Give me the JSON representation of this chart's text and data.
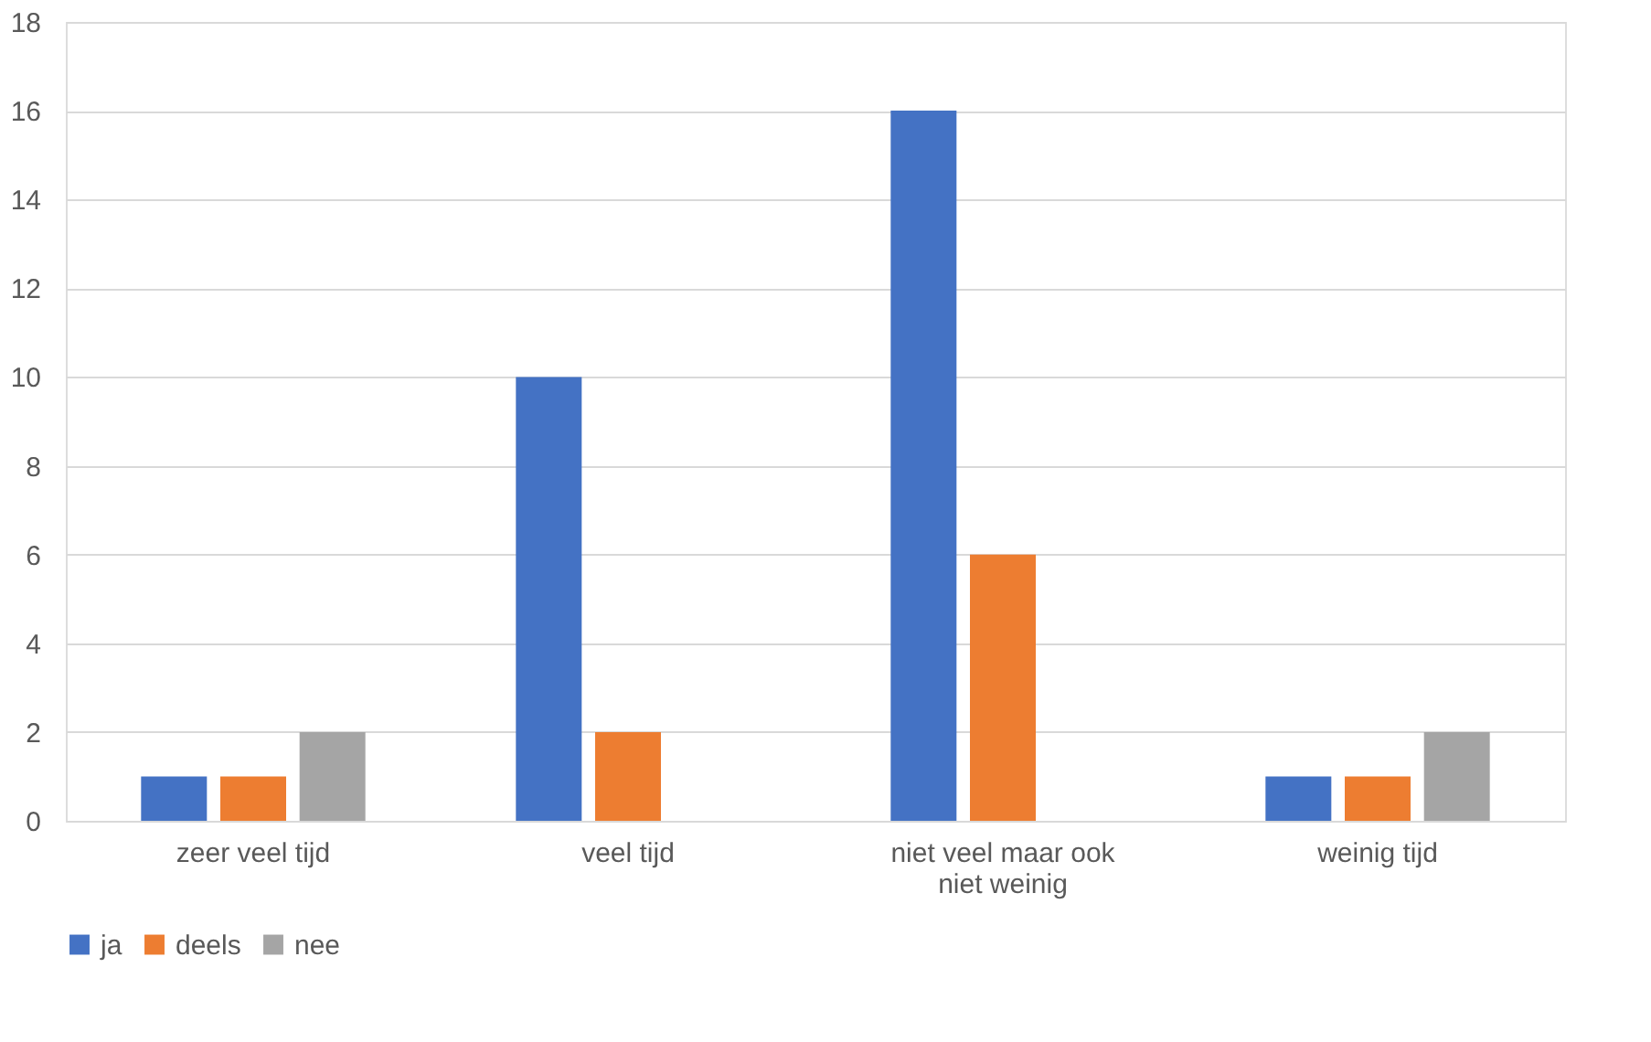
{
  "chart_data": {
    "type": "bar",
    "categories": [
      "zeer veel tijd",
      "veel tijd",
      "niet veel maar ook niet weinig",
      "weinig tijd"
    ],
    "series": [
      {
        "name": "ja",
        "color": "#4472c4",
        "values": [
          1,
          10,
          16,
          1
        ]
      },
      {
        "name": "deels",
        "color": "#ed7d31",
        "values": [
          1,
          2,
          6,
          1
        ]
      },
      {
        "name": "nee",
        "color": "#a5a5a5",
        "values": [
          2,
          0,
          0,
          2
        ]
      }
    ],
    "ylim": [
      0,
      18
    ],
    "yticks": [
      0,
      2,
      4,
      6,
      8,
      10,
      12,
      14,
      16,
      18
    ],
    "grid": "y",
    "legend": "bottom"
  }
}
